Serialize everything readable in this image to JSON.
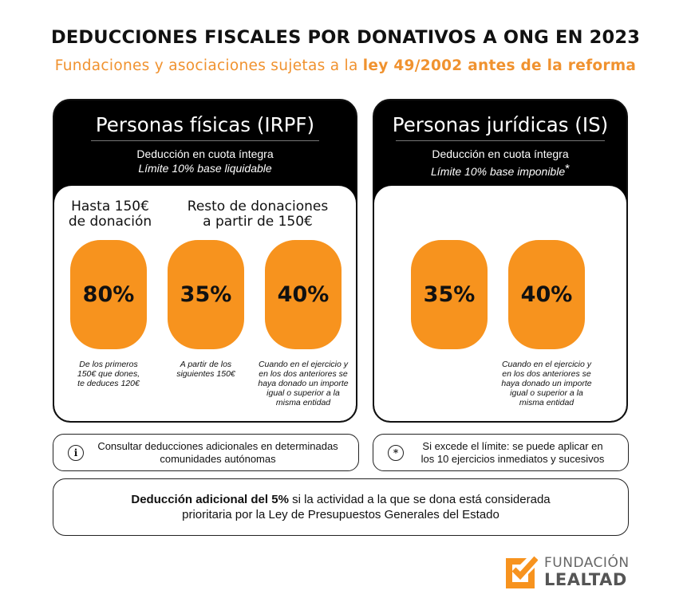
{
  "header": {
    "title": "DEDUCCIONES FISCALES POR DONATIVOS A ONG EN 2023",
    "subtitle_prefix": "Fundaciones y asociaciones sujetas a la ",
    "subtitle_bold": "ley 49/2002 antes de la reforma"
  },
  "irpf": {
    "title": "Personas físicas (IRPF)",
    "sub1": "Deducción en cuota íntegra",
    "sub2": "Límite 10% base liquidable",
    "col1_head": [
      "Hasta 150€",
      "de donación"
    ],
    "col2_head": [
      "Resto de donaciones",
      "a partir de 150€"
    ],
    "rates": [
      {
        "value": "80%",
        "note": [
          "De los primeros",
          "150€ que dones,",
          "te deduces 120€"
        ]
      },
      {
        "value": "35%",
        "note": [
          "A partir de los",
          "siguientes 150€"
        ]
      },
      {
        "value": "40%",
        "note": [
          "Cuando en el ejercicio y",
          "en los dos anteriores se",
          "haya donado un importe",
          "igual o superior a la",
          "misma entidad"
        ]
      }
    ]
  },
  "is": {
    "title": "Personas jurídicas (IS)",
    "sub1": "Deducción en cuota íntegra",
    "sub2": "Límite 10% base imponible",
    "asterisk": "*",
    "rates": [
      {
        "value": "35%"
      },
      {
        "value": "40%",
        "note": [
          "Cuando en el ejercicio y",
          "en los dos anteriores se",
          "haya donado un importe",
          "igual o superior a la",
          "misma entidad"
        ]
      }
    ]
  },
  "info_left": {
    "icon": "info-icon",
    "glyph": "i",
    "lines": [
      "Consultar deducciones adicionales en determinadas",
      "comunidades autónomas"
    ]
  },
  "info_right": {
    "icon": "asterisk-icon",
    "glyph": "*",
    "lines": [
      "Si excede el límite: se puede aplicar en",
      "los 10 ejercicios inmediatos y sucesivos"
    ]
  },
  "additional": {
    "bold": "Deducción adicional del 5%",
    "rest": " si la actividad a la que se dona está considerada",
    "line2": "prioritaria por la Ley de Presupuestos Generales del Estado"
  },
  "logo": {
    "line1": "FUNDACIÓN",
    "line2": "LEALTAD",
    "color_orange": "#f7931e",
    "color_grey": "#666666"
  },
  "colors": {
    "accent": "#f7931e",
    "subtitle": "#f0922f",
    "dark": "#000000"
  }
}
